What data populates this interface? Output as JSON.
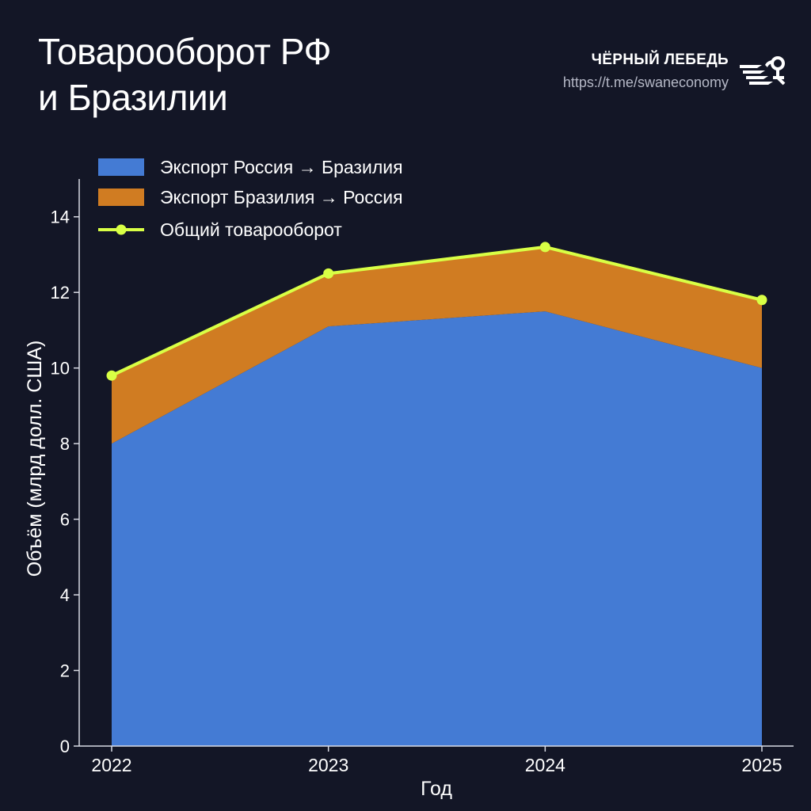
{
  "header": {
    "title_line1": "Товарооборот РФ",
    "title_line2": "и Бразилии",
    "brand_name": "ЧЁРНЫЙ ЛЕБЕДЬ",
    "brand_url": "https://t.me/swaneconomy"
  },
  "icons": {
    "logo": "swan-logo-icon"
  },
  "chart_data": {
    "type": "area",
    "stacked": true,
    "title": "Товарооборот РФ и Бразилии",
    "xlabel": "Год",
    "ylabel": "Объём (млрд долл. США)",
    "categories": [
      "2022",
      "2023",
      "2024",
      "2025"
    ],
    "ylim": [
      0,
      15
    ],
    "yticks": [
      0,
      2,
      4,
      6,
      8,
      10,
      12,
      14
    ],
    "series": [
      {
        "name": "Экспорт Россия → Бразилия",
        "type": "area",
        "color": "#447BD4",
        "values": [
          8.0,
          11.1,
          11.5,
          10.0
        ]
      },
      {
        "name": "Экспорт Бразилия → Россия",
        "type": "area",
        "color": "#D07C22",
        "values": [
          1.8,
          1.4,
          1.7,
          1.8
        ]
      },
      {
        "name": "Общий товарооборот",
        "type": "line",
        "color": "#D9FF45",
        "values": [
          9.8,
          12.5,
          13.2,
          11.8
        ]
      }
    ],
    "legend": "top-left",
    "grid": false
  }
}
